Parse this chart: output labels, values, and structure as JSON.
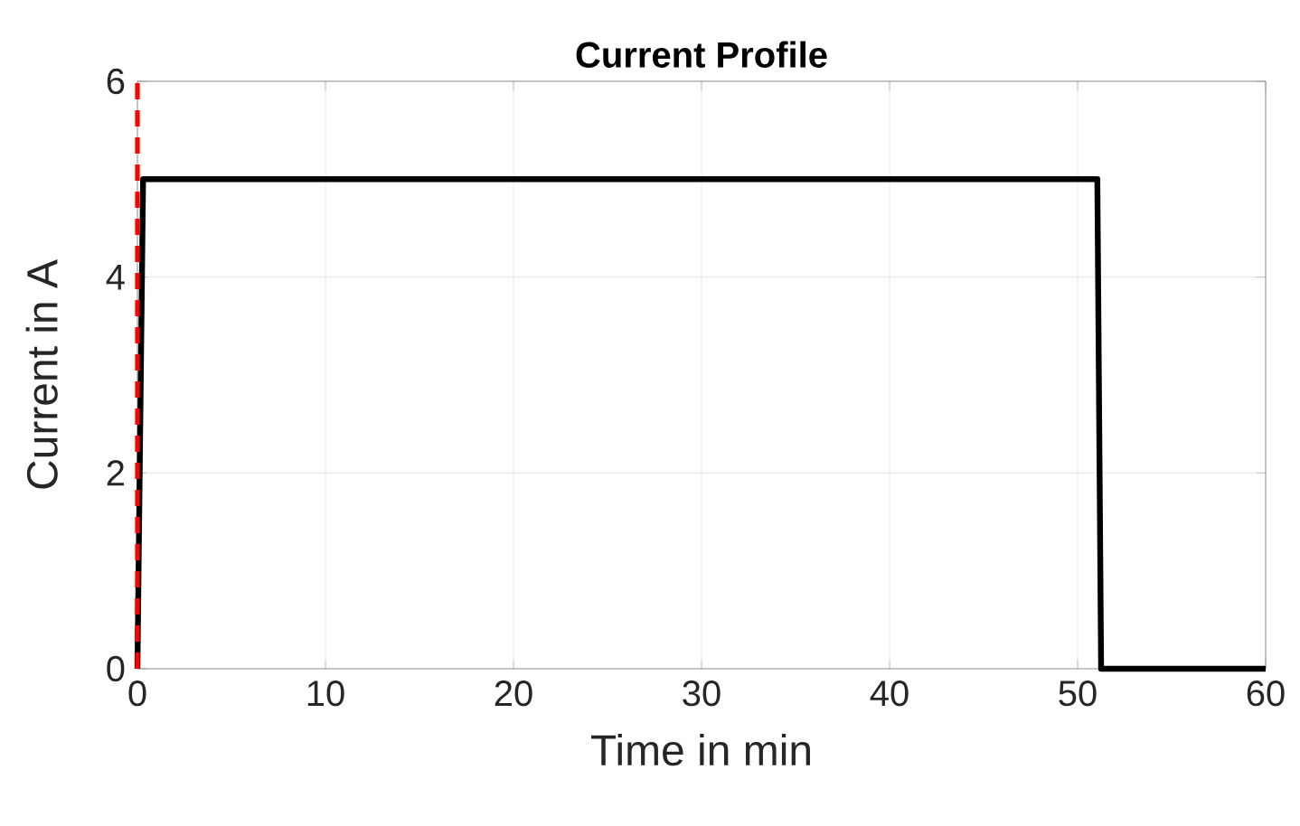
{
  "chart_data": {
    "type": "line",
    "title": "Current Profile",
    "xlabel": "Time in min",
    "ylabel": "Current in A",
    "x": [
      0,
      0.3,
      51.05,
      51.25,
      60
    ],
    "series": [
      {
        "color": "#000000",
        "values": [
          0,
          5,
          5,
          0,
          0
        ]
      }
    ],
    "xlim": [
      0,
      60
    ],
    "ylim": [
      0,
      6
    ],
    "xticks": [
      0,
      10,
      20,
      30,
      40,
      50,
      60
    ],
    "yticks": [
      0,
      2,
      4,
      6
    ],
    "grid": true,
    "ref_lines": [
      {
        "axis": "x",
        "value": 0,
        "color": "#ff0000",
        "line_style": "dashed"
      }
    ]
  }
}
